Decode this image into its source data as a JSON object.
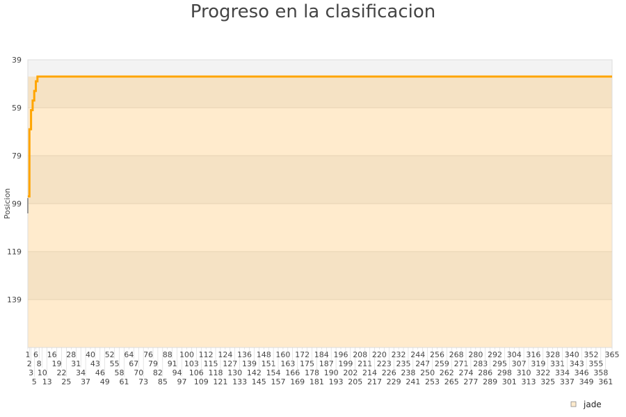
{
  "chart_data": {
    "type": "line",
    "title": "Progreso en la clasificacion",
    "xlabel": "",
    "ylabel": "Posicion",
    "y_inverted": true,
    "ylim": [
      39,
      159
    ],
    "y_ticks": [
      39,
      59,
      79,
      99,
      119,
      139
    ],
    "xlim": [
      1,
      365
    ],
    "x_ticks": [
      1,
      2,
      3,
      5,
      6,
      8,
      10,
      13,
      16,
      19,
      22,
      25,
      28,
      31,
      34,
      37,
      40,
      43,
      46,
      49,
      52,
      55,
      58,
      61,
      64,
      67,
      70,
      73,
      76,
      79,
      82,
      85,
      88,
      91,
      94,
      97,
      100,
      103,
      106,
      109,
      112,
      115,
      118,
      121,
      124,
      127,
      130,
      133,
      136,
      139,
      142,
      145,
      148,
      151,
      154,
      157,
      160,
      163,
      166,
      169,
      172,
      175,
      178,
      181,
      184,
      187,
      190,
      193,
      196,
      199,
      202,
      205,
      208,
      211,
      214,
      217,
      220,
      223,
      226,
      229,
      232,
      235,
      238,
      241,
      244,
      247,
      250,
      253,
      256,
      259,
      262,
      265,
      268,
      271,
      274,
      277,
      280,
      283,
      286,
      289,
      292,
      295,
      298,
      301,
      304,
      307,
      310,
      313,
      316,
      319,
      322,
      325,
      328,
      331,
      334,
      337,
      340,
      343,
      346,
      349,
      352,
      355,
      358,
      361,
      365
    ],
    "grid": true,
    "legend_position": "bottom-right",
    "series": [
      {
        "name": "jade",
        "color": "#FFA500",
        "points": [
          [
            1,
            96
          ],
          [
            2,
            82
          ],
          [
            2,
            68
          ],
          [
            3,
            60
          ],
          [
            4,
            56
          ],
          [
            5,
            52
          ],
          [
            6,
            48
          ],
          [
            7,
            46
          ],
          [
            365,
            46
          ]
        ]
      }
    ],
    "colors": {
      "band_light": "#FFEBCD",
      "band_dark": "#F5E2C4",
      "above_top": "#F3F3F3",
      "line": "#FFA500"
    }
  }
}
